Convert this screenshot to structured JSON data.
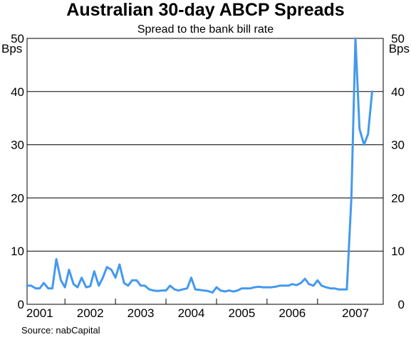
{
  "chart_data": {
    "type": "line",
    "title": "Australian 30-day ABCP Spreads",
    "subtitle": "Spread to the bank bill rate",
    "ylabel_left": "Bps",
    "ylabel_right": "Bps",
    "ylim": [
      0,
      50
    ],
    "yticks": [
      0,
      10,
      20,
      30,
      40,
      50
    ],
    "xlim": [
      2000.75,
      2007.8
    ],
    "year_boundaries": [
      2001.5,
      2002.5,
      2003.5,
      2004.5,
      2005.5,
      2006.5
    ],
    "year_labels": [
      {
        "label": "2001",
        "x": 2001.0
      },
      {
        "label": "2002",
        "x": 2002.0
      },
      {
        "label": "2003",
        "x": 2003.0
      },
      {
        "label": "2004",
        "x": 2004.0
      },
      {
        "label": "2005",
        "x": 2005.0
      },
      {
        "label": "2006",
        "x": 2006.0
      },
      {
        "label": "2007",
        "x": 2007.25
      }
    ],
    "grid": true,
    "line_color": "#4499ee",
    "series": [
      {
        "x": [
          2000.75,
          2000.83,
          2000.92,
          2001.0,
          2001.08,
          2001.17,
          2001.25,
          2001.33,
          2001.42,
          2001.5,
          2001.58,
          2001.67,
          2001.75,
          2001.83,
          2001.92,
          2002.0,
          2002.08,
          2002.17,
          2002.25,
          2002.33,
          2002.42,
          2002.5,
          2002.58,
          2002.67,
          2002.75,
          2002.83,
          2002.92,
          2003.0,
          2003.08,
          2003.17,
          2003.25,
          2003.33,
          2003.42,
          2003.5,
          2003.58,
          2003.67,
          2003.75,
          2003.83,
          2003.92,
          2004.0,
          2004.08,
          2004.17,
          2004.25,
          2004.33,
          2004.42,
          2004.5,
          2004.58,
          2004.67,
          2004.75,
          2004.83,
          2004.92,
          2005.0,
          2005.08,
          2005.17,
          2005.25,
          2005.33,
          2005.42,
          2005.5,
          2005.58,
          2005.67,
          2005.75,
          2005.83,
          2005.92,
          2006.0,
          2006.08,
          2006.17,
          2006.25,
          2006.33,
          2006.42,
          2006.5,
          2006.58,
          2006.67,
          2006.75,
          2006.83,
          2006.92,
          2007.0,
          2007.08,
          2007.17,
          2007.25,
          2007.33,
          2007.42,
          2007.5,
          2007.58
        ],
        "values": [
          3.5,
          3.5,
          3.0,
          3.0,
          4.0,
          3.0,
          3.0,
          8.5,
          4.5,
          3.2,
          6.5,
          3.8,
          3.2,
          5.0,
          3.2,
          3.4,
          6.2,
          3.5,
          5.0,
          7.0,
          6.5,
          5.0,
          7.5,
          4.0,
          3.5,
          4.5,
          4.5,
          3.5,
          3.5,
          2.8,
          2.6,
          2.5,
          2.6,
          2.6,
          3.5,
          2.8,
          2.6,
          2.8,
          3.0,
          5.0,
          2.8,
          2.7,
          2.6,
          2.5,
          2.2,
          3.2,
          2.6,
          2.4,
          2.6,
          2.4,
          2.6,
          3.0,
          3.0,
          3.0,
          3.2,
          3.3,
          3.2,
          3.2,
          3.2,
          3.3,
          3.5,
          3.5,
          3.5,
          3.8,
          3.6,
          4.0,
          4.8,
          3.8,
          3.5,
          4.5,
          3.5,
          3.2,
          3.0,
          3.0,
          2.8,
          2.8,
          2.8,
          20.0,
          50.0,
          33.0,
          30.0,
          32.0,
          40.0
        ]
      }
    ]
  },
  "source_note": "Source: nabCapital"
}
